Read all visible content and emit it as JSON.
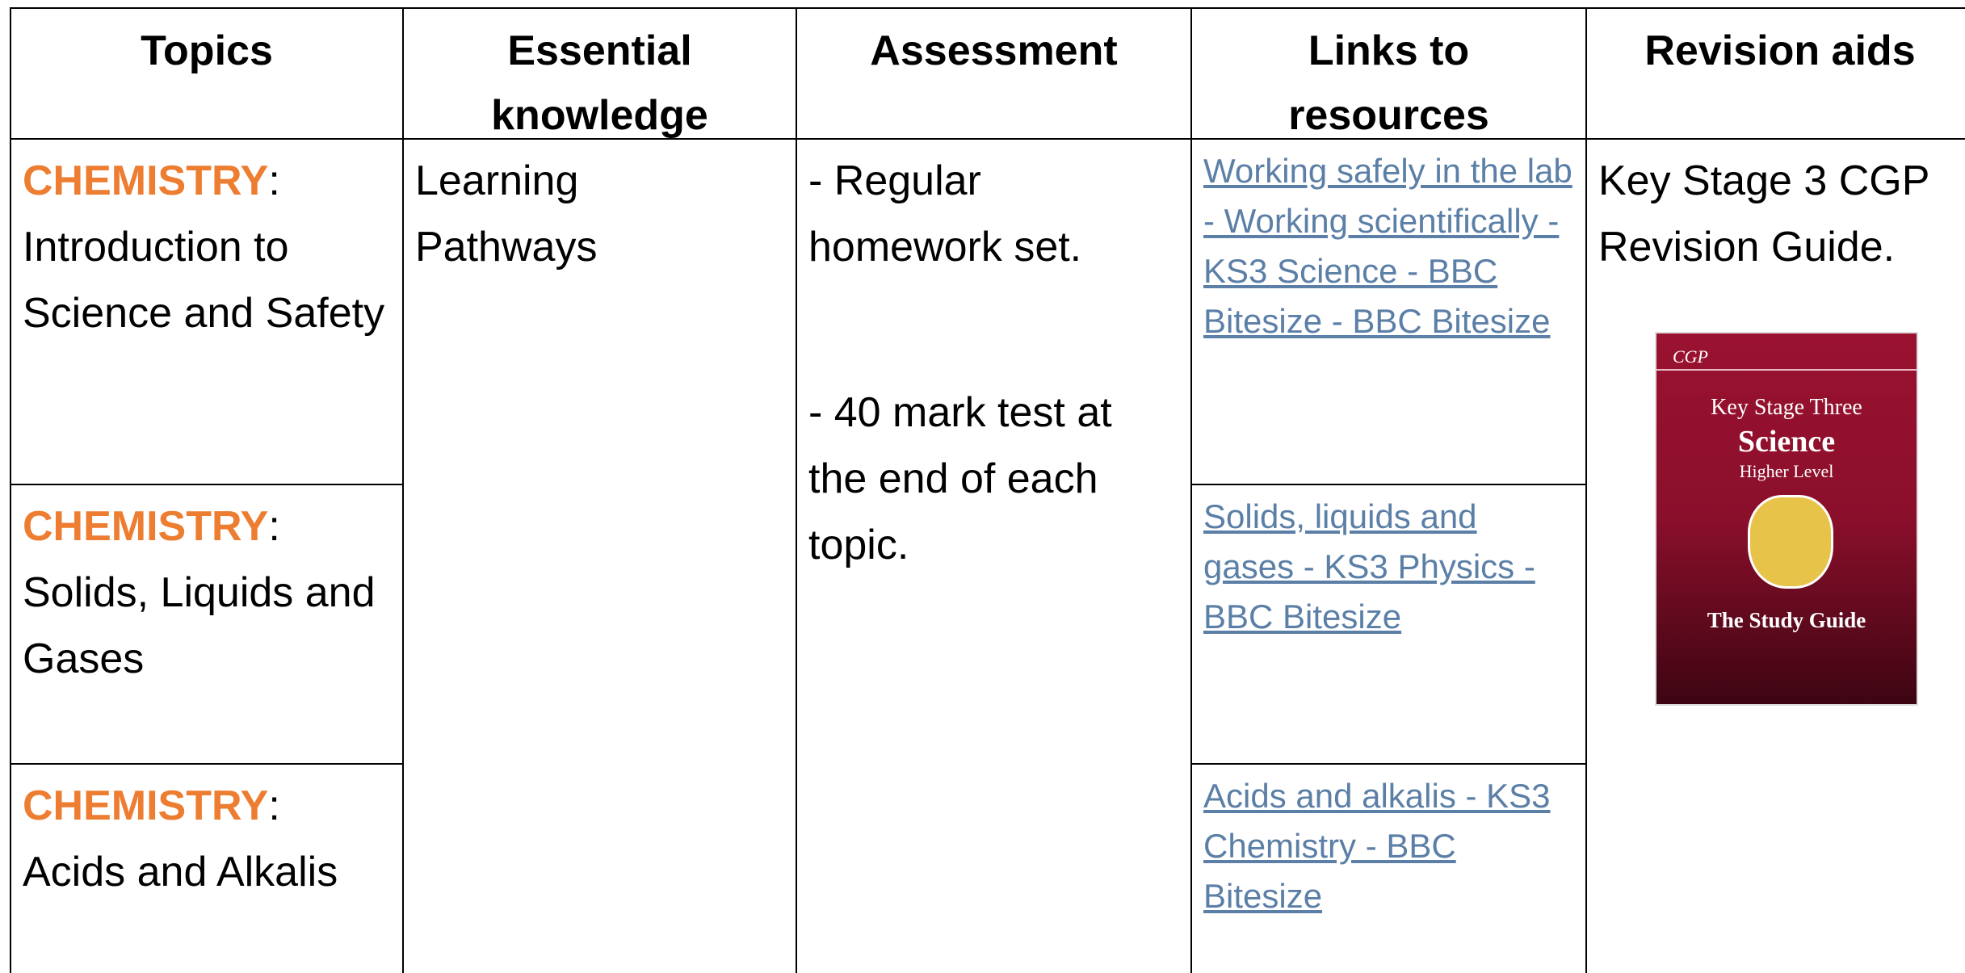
{
  "header": [
    "Topics",
    "Essential knowledge",
    "Assessment",
    "Links to resources",
    "Revision aids"
  ],
  "topics": [
    {
      "subject": "CHEMISTRY",
      "separator": ":",
      "title": "Introduction to Science and Safety"
    },
    {
      "subject": "CHEMISTRY",
      "separator": ":",
      "title": "Solids, Liquids and Gases"
    },
    {
      "subject": "CHEMISTRY",
      "separator": ":",
      "title": "Acids and Alkalis"
    }
  ],
  "essential_knowledge": "Learning Pathways",
  "assessment": [
    "- Regular homework set.",
    "- 40 mark test at the end of each topic."
  ],
  "links": [
    "Working safely in the lab - Working scientifically - KS3 Science - BBC Bitesize - BBC Bitesize",
    "Solids, liquids and gases - KS3 Physics - BBC Bitesize",
    "Acids and alkalis - KS3 Chemistry - BBC Bitesize"
  ],
  "revision_aids": {
    "text": "Key Stage 3 CGP Revision Guide.",
    "book_cover": {
      "publisher": "CGP",
      "stage": "Key Stage Three",
      "subject": "Science",
      "level": "Higher Level",
      "subtitle": "The Study Guide"
    }
  }
}
